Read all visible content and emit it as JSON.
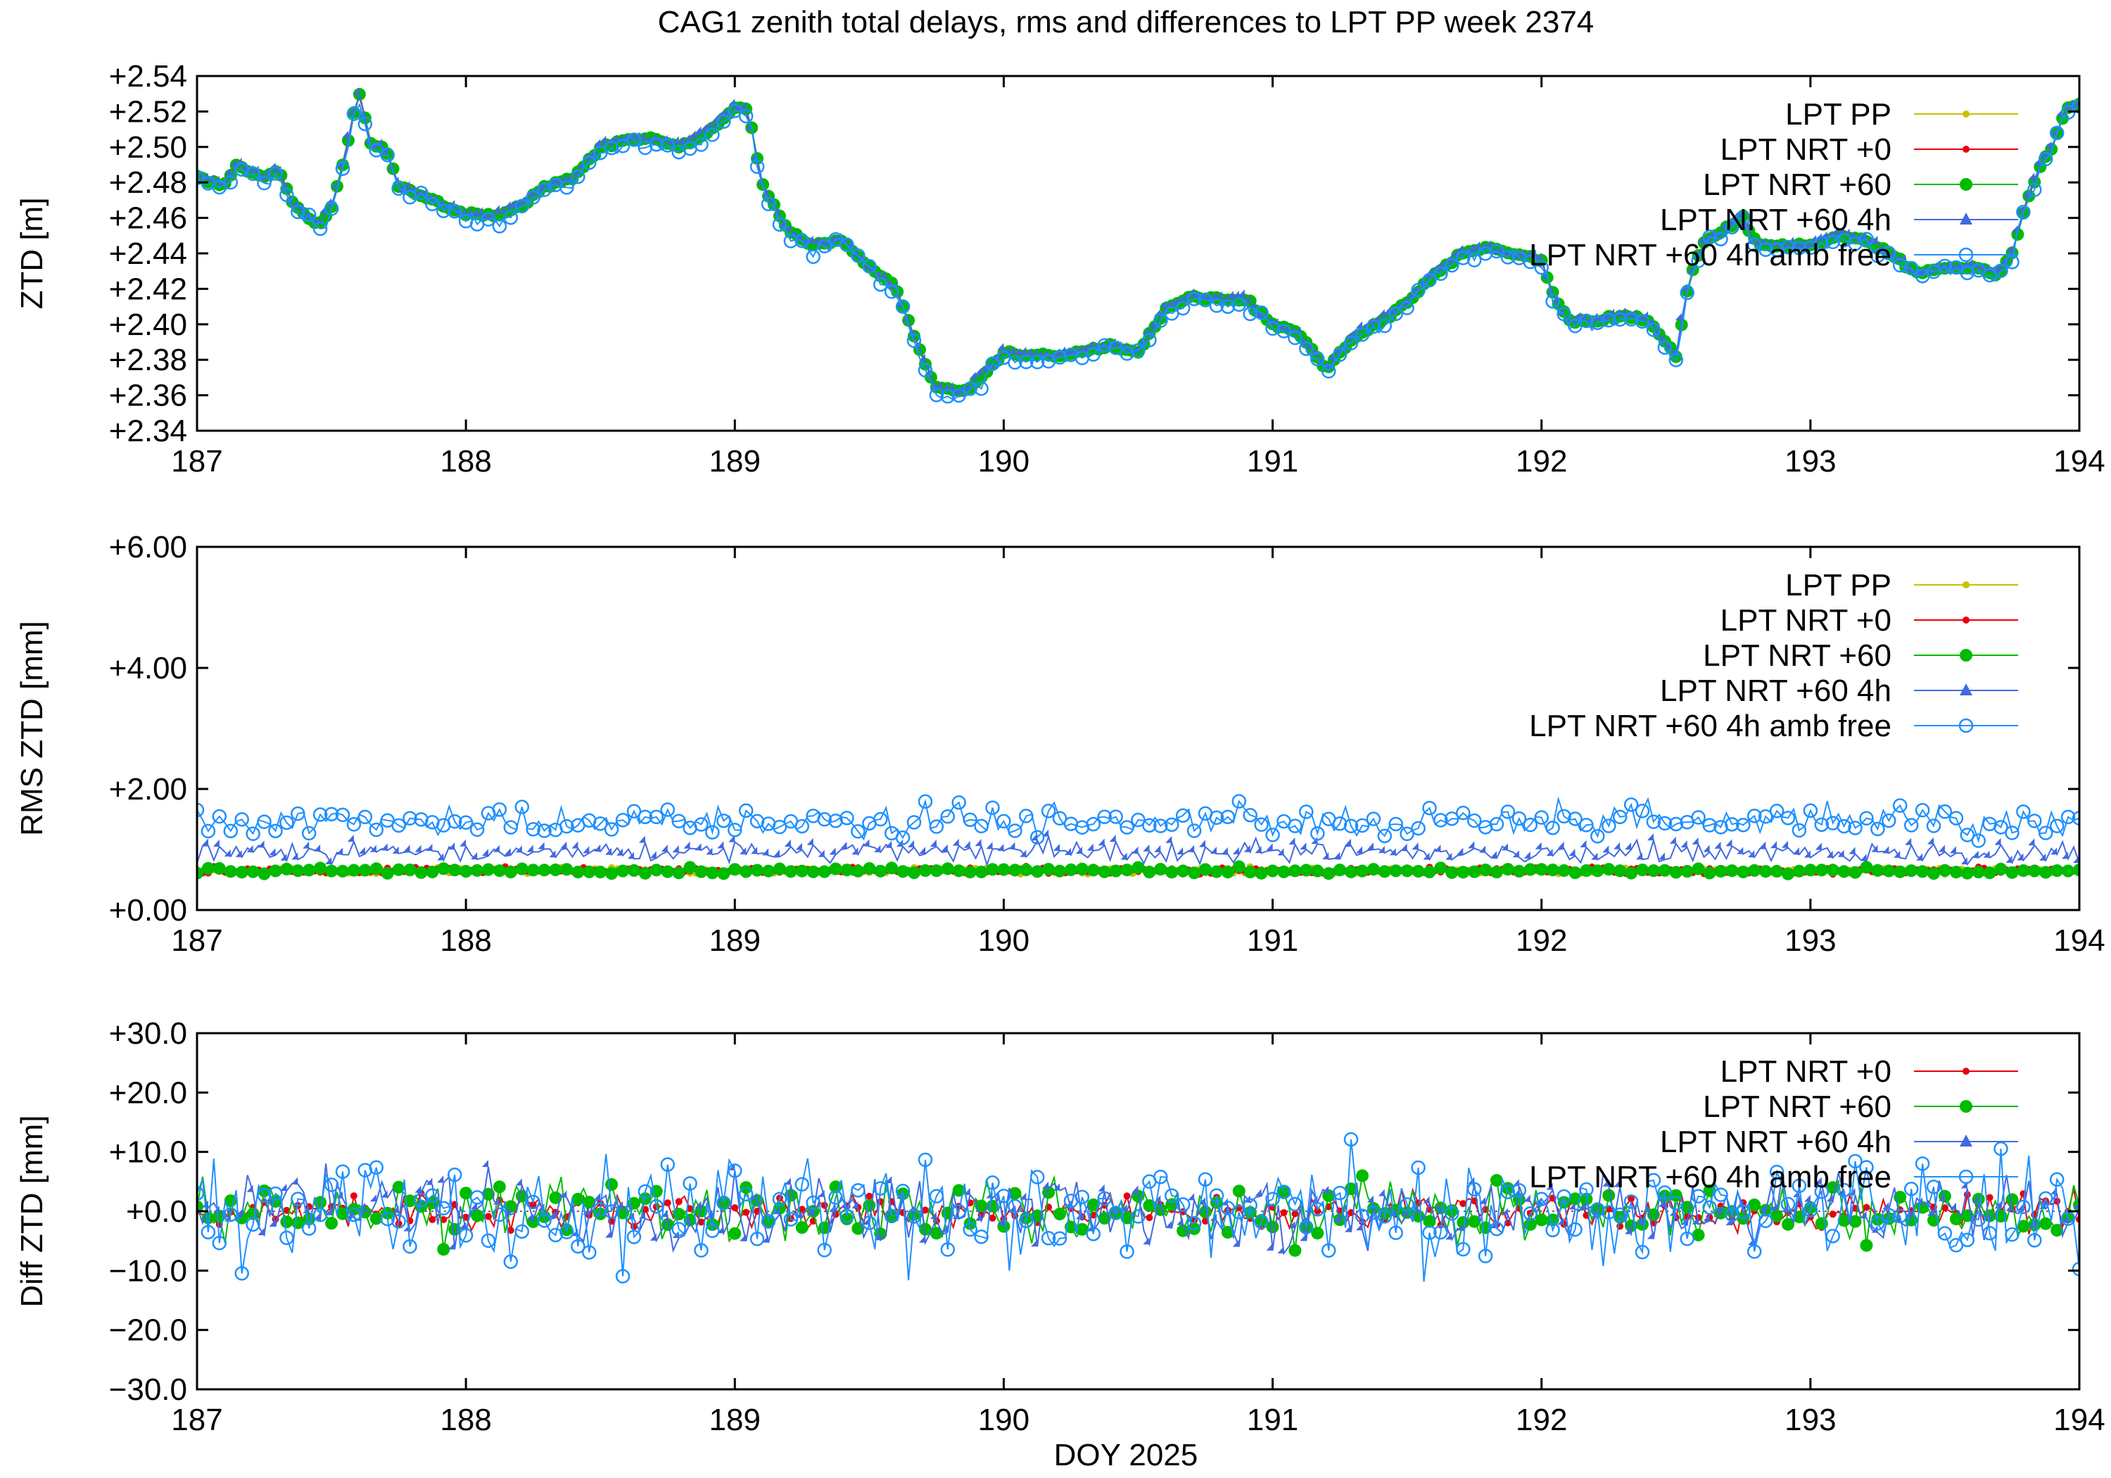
{
  "title": "CAG1 zenith total delays, rms and differences to LPT PP week 2374",
  "xlabel": "DOY 2025",
  "colors": {
    "LPT PP": "#c8c000",
    "LPT NRT +0": "#e8000e",
    "LPT NRT +60": "#00bb00",
    "LPT NRT +60 4h": "#4169e1",
    "LPT NRT +60 4h amb free": "#1e90ff"
  },
  "chart_data": [
    {
      "type": "line",
      "ylabel": "ZTD [m]",
      "xlim": [
        187,
        194
      ],
      "ylim": [
        2.34,
        2.54
      ],
      "xticks": [
        "187",
        "188",
        "189",
        "190",
        "191",
        "192",
        "193",
        "194"
      ],
      "yticks": [
        "+2.34",
        "+2.36",
        "+2.38",
        "+2.40",
        "+2.42",
        "+2.44",
        "+2.46",
        "+2.48",
        "+2.50",
        "+2.52",
        "+2.54"
      ],
      "legend_position": "top-right",
      "legend": [
        "LPT PP",
        "LPT NRT +0",
        "LPT NRT +60",
        "LPT NRT +60 4h",
        "LPT NRT +60 4h amb free"
      ],
      "profile": [
        [
          187.0,
          2.483
        ],
        [
          187.1,
          2.478
        ],
        [
          187.15,
          2.49
        ],
        [
          187.25,
          2.482
        ],
        [
          187.3,
          2.488
        ],
        [
          187.35,
          2.47
        ],
        [
          187.4,
          2.462
        ],
        [
          187.45,
          2.455
        ],
        [
          187.5,
          2.466
        ],
        [
          187.55,
          2.495
        ],
        [
          187.6,
          2.532
        ],
        [
          187.65,
          2.5
        ],
        [
          187.7,
          2.5
        ],
        [
          187.75,
          2.478
        ],
        [
          187.85,
          2.472
        ],
        [
          188.0,
          2.462
        ],
        [
          188.1,
          2.461
        ],
        [
          188.2,
          2.466
        ],
        [
          188.3,
          2.478
        ],
        [
          188.4,
          2.482
        ],
        [
          188.5,
          2.5
        ],
        [
          188.6,
          2.504
        ],
        [
          188.7,
          2.504
        ],
        [
          188.8,
          2.5
        ],
        [
          188.9,
          2.508
        ],
        [
          189.0,
          2.522
        ],
        [
          189.05,
          2.52
        ],
        [
          189.1,
          2.48
        ],
        [
          189.2,
          2.452
        ],
        [
          189.3,
          2.444
        ],
        [
          189.4,
          2.448
        ],
        [
          189.5,
          2.432
        ],
        [
          189.55,
          2.426
        ],
        [
          189.6,
          2.42
        ],
        [
          189.65,
          2.4
        ],
        [
          189.7,
          2.38
        ],
        [
          189.75,
          2.364
        ],
        [
          189.85,
          2.362
        ],
        [
          189.95,
          2.375
        ],
        [
          190.0,
          2.384
        ],
        [
          190.2,
          2.382
        ],
        [
          190.3,
          2.385
        ],
        [
          190.4,
          2.388
        ],
        [
          190.5,
          2.384
        ],
        [
          190.6,
          2.408
        ],
        [
          190.7,
          2.416
        ],
        [
          190.8,
          2.414
        ],
        [
          190.9,
          2.414
        ],
        [
          191.0,
          2.4
        ],
        [
          191.1,
          2.395
        ],
        [
          191.2,
          2.375
        ],
        [
          191.3,
          2.392
        ],
        [
          191.4,
          2.402
        ],
        [
          191.5,
          2.412
        ],
        [
          191.6,
          2.428
        ],
        [
          191.7,
          2.44
        ],
        [
          191.8,
          2.443
        ],
        [
          191.9,
          2.44
        ],
        [
          192.0,
          2.436
        ],
        [
          192.05,
          2.415
        ],
        [
          192.1,
          2.402
        ],
        [
          192.2,
          2.402
        ],
        [
          192.3,
          2.405
        ],
        [
          192.4,
          2.402
        ],
        [
          192.5,
          2.382
        ],
        [
          192.55,
          2.425
        ],
        [
          192.6,
          2.445
        ],
        [
          192.7,
          2.455
        ],
        [
          192.75,
          2.46
        ],
        [
          192.8,
          2.445
        ],
        [
          192.9,
          2.444
        ],
        [
          193.0,
          2.444
        ],
        [
          193.1,
          2.45
        ],
        [
          193.2,
          2.448
        ],
        [
          193.3,
          2.44
        ],
        [
          193.4,
          2.428
        ],
        [
          193.5,
          2.432
        ],
        [
          193.6,
          2.432
        ],
        [
          193.7,
          2.428
        ],
        [
          193.75,
          2.44
        ],
        [
          193.8,
          2.468
        ],
        [
          193.85,
          2.488
        ],
        [
          193.9,
          2.5
        ],
        [
          193.95,
          2.522
        ],
        [
          194.0,
          2.524
        ]
      ]
    },
    {
      "type": "line",
      "ylabel": "RMS ZTD [mm]",
      "xlim": [
        187,
        194
      ],
      "ylim": [
        0,
        6
      ],
      "xticks": [
        "187",
        "188",
        "189",
        "190",
        "191",
        "192",
        "193",
        "194"
      ],
      "yticks": [
        "+0.00",
        "+2.00",
        "+4.00",
        "+6.00"
      ],
      "legend_position": "top-right",
      "legend": [
        "LPT PP",
        "LPT NRT +0",
        "LPT NRT +60",
        "LPT NRT +60 4h",
        "LPT NRT +60 4h amb free"
      ],
      "levels": {
        "LPT PP": 0.65,
        "LPT NRT +0": 0.65,
        "LPT NRT +60": 0.65,
        "LPT NRT +60 4h": 0.95,
        "LPT NRT +60 4h amb free": 1.3
      }
    },
    {
      "type": "line",
      "ylabel": "Diff ZTD [mm]",
      "xlim": [
        187,
        194
      ],
      "ylim": [
        -30,
        30
      ],
      "xticks": [
        "187",
        "188",
        "189",
        "190",
        "191",
        "192",
        "193",
        "194"
      ],
      "yticks": [
        "−30.0",
        "−20.0",
        "−10.0",
        "+0.0",
        "+10.0",
        "+20.0",
        "+30.0"
      ],
      "legend_position": "top-right",
      "legend": [
        "LPT NRT +0",
        "LPT NRT +60",
        "LPT NRT +60 4h",
        "LPT NRT +60 4h amb free"
      ],
      "amplitude": {
        "LPT NRT +0": 3,
        "LPT NRT +60": 5,
        "LPT NRT +60 4h": 6,
        "LPT NRT +60 4h amb free": 9
      }
    }
  ]
}
